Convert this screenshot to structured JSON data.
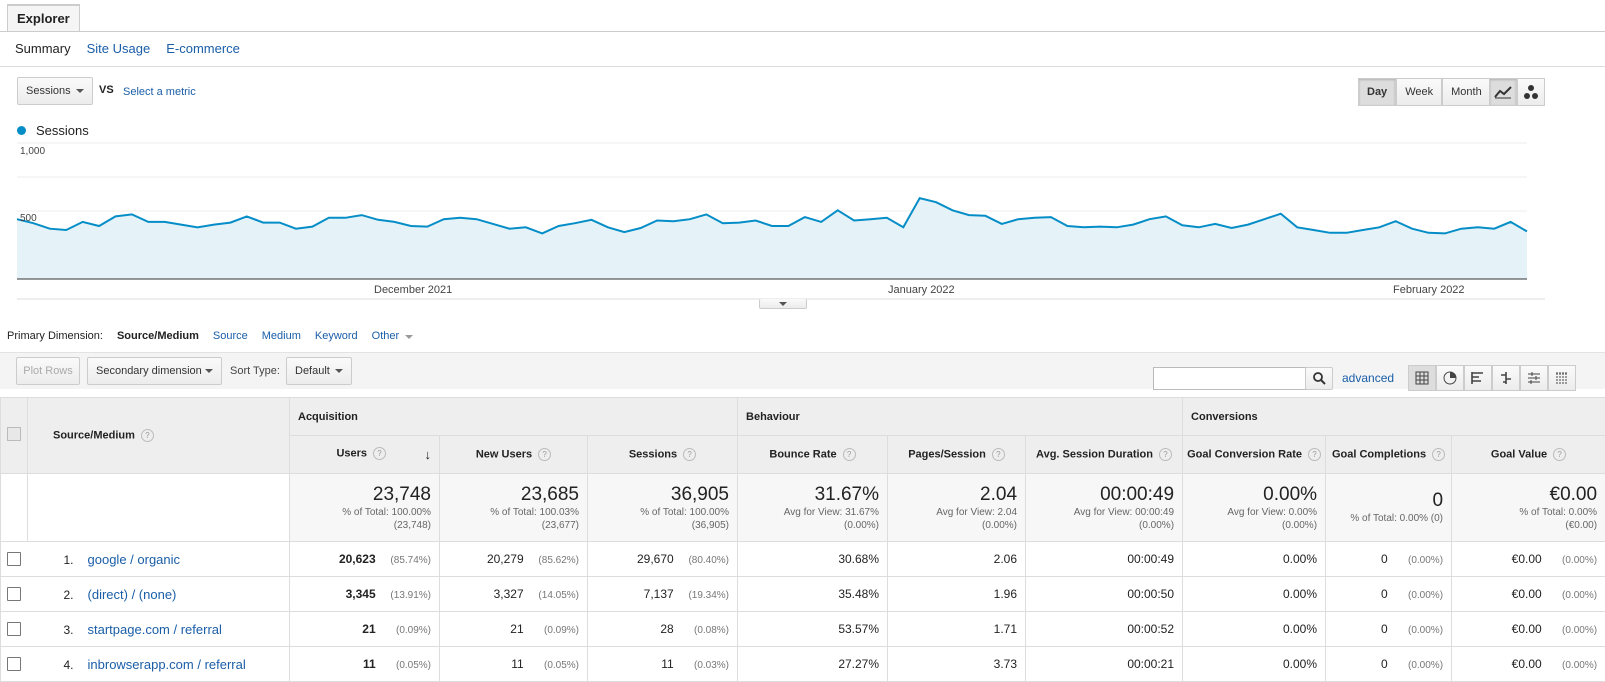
{
  "tab": {
    "label": "Explorer"
  },
  "subtabs": [
    {
      "label": "Summary"
    },
    {
      "label": "Site Usage"
    },
    {
      "label": "E-commerce"
    }
  ],
  "chart_controls": {
    "metric": "Sessions",
    "vs": "VS",
    "select_metric": "Select a metric",
    "granularity": [
      "Day",
      "Week",
      "Month"
    ],
    "selected_granularity": "Day"
  },
  "chart_data": {
    "type": "area",
    "series": [
      {
        "name": "Sessions",
        "color": "#058dc7",
        "values": [
          440,
          410,
          370,
          360,
          420,
          390,
          460,
          475,
          420,
          420,
          400,
          380,
          400,
          415,
          460,
          415,
          415,
          370,
          385,
          450,
          450,
          470,
          435,
          420,
          390,
          385,
          440,
          450,
          440,
          405,
          370,
          380,
          335,
          390,
          410,
          435,
          380,
          345,
          375,
          430,
          425,
          440,
          475,
          410,
          415,
          430,
          390,
          390,
          455,
          420,
          505,
          430,
          440,
          450,
          380,
          595,
          565,
          505,
          470,
          465,
          405,
          440,
          450,
          455,
          390,
          380,
          385,
          380,
          400,
          440,
          460,
          395,
          380,
          405,
          375,
          400,
          440,
          480,
          380,
          360,
          340,
          340,
          360,
          380,
          425,
          370,
          340,
          335,
          370,
          380,
          370,
          420,
          350
        ]
      }
    ],
    "x_labels": [
      "December 2021",
      "January 2022",
      "February 2022"
    ],
    "y_ticks": [
      "1,000",
      "500"
    ],
    "ylim": [
      0,
      1000
    ],
    "grid": true
  },
  "primary_dimension": {
    "label": "Primary Dimension:",
    "current": "Source/Medium",
    "options": [
      "Source",
      "Medium",
      "Keyword",
      "Other"
    ]
  },
  "toolbar": {
    "plot_rows": "Plot Rows",
    "secondary": "Secondary dimension",
    "sort_label": "Sort Type:",
    "sort_value": "Default",
    "advanced": "advanced",
    "search_value": ""
  },
  "table": {
    "dimension_header": "Source/Medium",
    "groups": [
      "Acquisition",
      "Behaviour",
      "Conversions"
    ],
    "columns": [
      "Users",
      "New Users",
      "Sessions",
      "Bounce Rate",
      "Pages/Session",
      "Avg. Session Duration",
      "Goal Conversion Rate",
      "Goal Completions",
      "Goal Value"
    ],
    "totals": [
      {
        "value": "23,748",
        "sub1": "% of Total: 100.00%",
        "sub2": "(23,748)"
      },
      {
        "value": "23,685",
        "sub1": "% of Total: 100.03%",
        "sub2": "(23,677)"
      },
      {
        "value": "36,905",
        "sub1": "% of Total: 100.00%",
        "sub2": "(36,905)"
      },
      {
        "value": "31.67%",
        "sub1": "Avg for View: 31.67%",
        "sub2": "(0.00%)"
      },
      {
        "value": "2.04",
        "sub1": "Avg for View: 2.04",
        "sub2": "(0.00%)"
      },
      {
        "value": "00:00:49",
        "sub1": "Avg for View: 00:00:49",
        "sub2": "(0.00%)"
      },
      {
        "value": "0.00%",
        "sub1": "Avg for View: 0.00%",
        "sub2": "(0.00%)"
      },
      {
        "value": "0",
        "sub1": "% of Total: 0.00% (0)",
        "sub2": ""
      },
      {
        "value": "€0.00",
        "sub1": "% of Total: 0.00%",
        "sub2": "(€0.00)"
      }
    ],
    "rows": [
      {
        "n": "1.",
        "name": "google / organic",
        "users": "20,623",
        "users_pct": "(85.74%)",
        "new_users": "20,279",
        "new_users_pct": "(85.62%)",
        "sessions": "29,670",
        "sessions_pct": "(80.40%)",
        "bounce": "30.68%",
        "pages": "2.06",
        "duration": "00:00:49",
        "conv": "0.00%",
        "completions": "0",
        "completions_pct": "(0.00%)",
        "value": "€0.00",
        "value_pct": "(0.00%)"
      },
      {
        "n": "2.",
        "name": "(direct) / (none)",
        "users": "3,345",
        "users_pct": "(13.91%)",
        "new_users": "3,327",
        "new_users_pct": "(14.05%)",
        "sessions": "7,137",
        "sessions_pct": "(19.34%)",
        "bounce": "35.48%",
        "pages": "1.96",
        "duration": "00:00:50",
        "conv": "0.00%",
        "completions": "0",
        "completions_pct": "(0.00%)",
        "value": "€0.00",
        "value_pct": "(0.00%)"
      },
      {
        "n": "3.",
        "name": "startpage.com / referral",
        "users": "21",
        "users_pct": "(0.09%)",
        "new_users": "21",
        "new_users_pct": "(0.09%)",
        "sessions": "28",
        "sessions_pct": "(0.08%)",
        "bounce": "53.57%",
        "pages": "1.71",
        "duration": "00:00:52",
        "conv": "0.00%",
        "completions": "0",
        "completions_pct": "(0.00%)",
        "value": "€0.00",
        "value_pct": "(0.00%)"
      },
      {
        "n": "4.",
        "name": "inbrowserapp.com / referral",
        "users": "11",
        "users_pct": "(0.05%)",
        "new_users": "11",
        "new_users_pct": "(0.05%)",
        "sessions": "11",
        "sessions_pct": "(0.03%)",
        "bounce": "27.27%",
        "pages": "3.73",
        "duration": "00:00:21",
        "conv": "0.00%",
        "completions": "0",
        "completions_pct": "(0.00%)",
        "value": "€0.00",
        "value_pct": "(0.00%)"
      }
    ]
  }
}
